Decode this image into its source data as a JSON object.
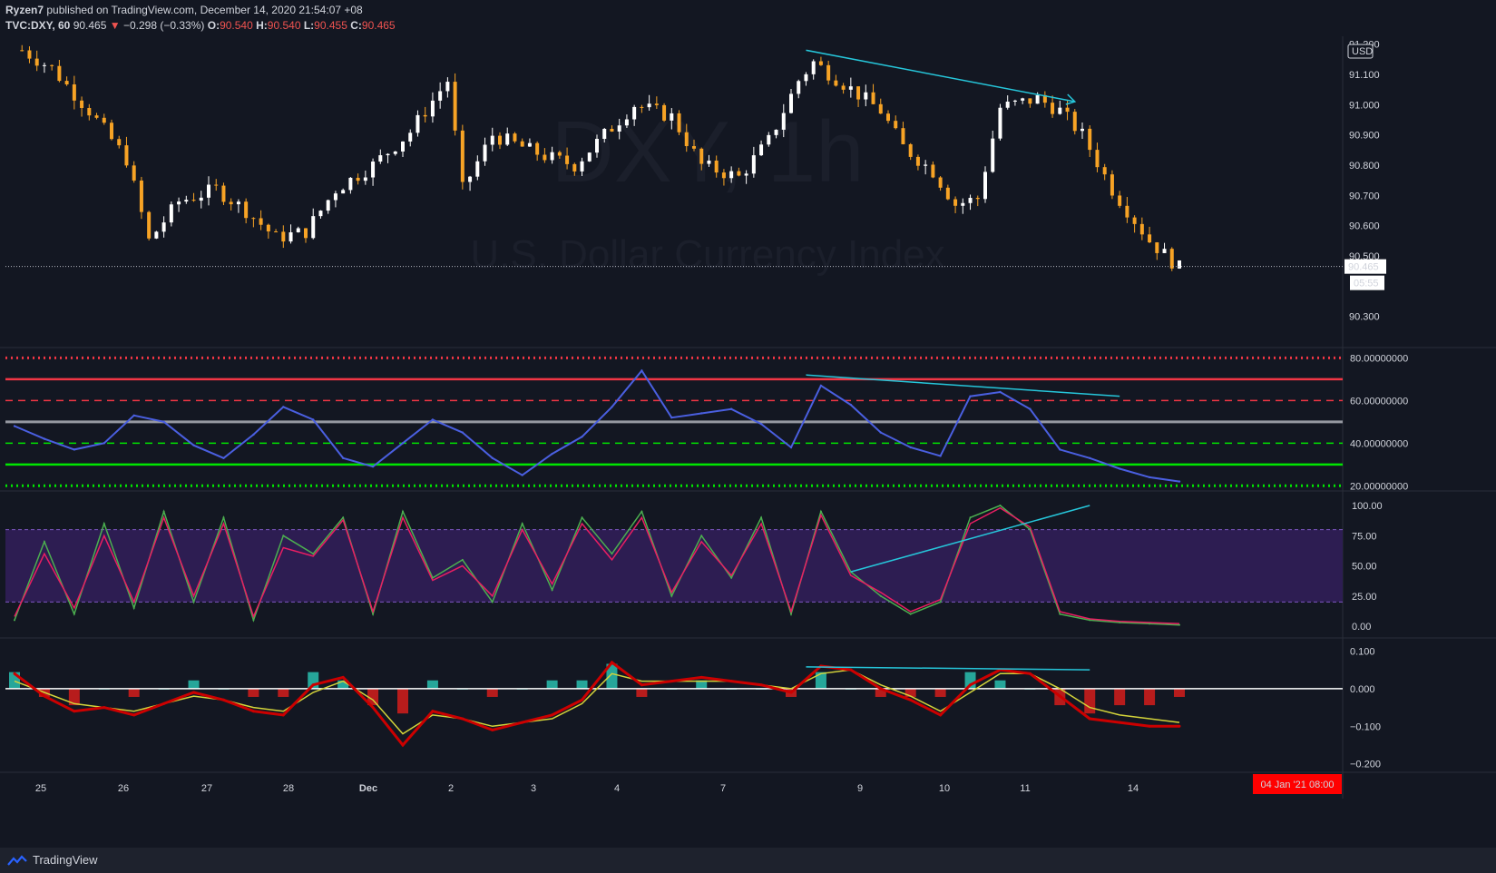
{
  "header": {
    "author": "Ryzen7",
    "published_text": "published on TradingView.com, December 14, 2020 21:54:07 +08",
    "symbol": "TVC:DXY, 60",
    "last": "90.465",
    "change_arrow": "▼",
    "change": "−0.298 (−0.33%)",
    "open_label": "O:",
    "open": "90.540",
    "high_label": "H:",
    "high": "90.540",
    "low_label": "L:",
    "low": "90.455",
    "close_label": "C:",
    "close": "90.465"
  },
  "watermark": {
    "symbol": "DXY, 1h",
    "name": "U.S. Dollar Currency Index"
  },
  "colors": {
    "background": "#131722",
    "up_candle": "#ffffff",
    "down_candle": "#f7a325",
    "trendline": "#26c6da",
    "rsi_line": "#4a5fe0",
    "stoch_k": "#4caf50",
    "stoch_d": "#e91e63",
    "macd_line": "#cc0000",
    "signal_line": "#d4d43a",
    "accent_red": "#ef5350"
  },
  "price_axis": {
    "currency": "USD",
    "ticks": [
      "91.200",
      "91.100",
      "91.000",
      "90.900",
      "90.800",
      "90.700",
      "90.600",
      "90.500",
      "90.300"
    ],
    "last_price": "90.465",
    "countdown": "05:55"
  },
  "rsi_axis": {
    "ticks": [
      "80.00000000",
      "60.00000000",
      "40.00000000",
      "20.00000000"
    ]
  },
  "stoch_axis": {
    "ticks": [
      "100.00",
      "75.00",
      "50.00",
      "25.00",
      "0.00"
    ]
  },
  "macd_axis": {
    "ticks": [
      "0.100",
      "0.000",
      "−0.100",
      "−0.200"
    ]
  },
  "time_axis": {
    "labels": [
      "25",
      "26",
      "27",
      "28",
      "Dec",
      "2",
      "3",
      "4",
      "7",
      "9",
      "10",
      "11",
      "14"
    ],
    "current_badge": "04 Jan '21  08:00"
  },
  "footer": {
    "brand": "TradingView"
  },
  "chart_data": [
    {
      "type": "candlestick",
      "title": "U.S. Dollar Currency Index",
      "series_points": [
        [
          1,
          91.18
        ],
        [
          5,
          91.12
        ],
        [
          10,
          90.98
        ],
        [
          15,
          90.82
        ],
        [
          18,
          90.55
        ],
        [
          22,
          90.68
        ],
        [
          27,
          90.72
        ],
        [
          31,
          90.65
        ],
        [
          35,
          90.56
        ],
        [
          39,
          90.58
        ],
        [
          43,
          90.72
        ],
        [
          48,
          90.8
        ],
        [
          53,
          90.91
        ],
        [
          55,
          90.98
        ],
        [
          58,
          91.08
        ],
        [
          60,
          90.72
        ],
        [
          64,
          90.9
        ],
        [
          68,
          90.86
        ],
        [
          71,
          90.83
        ],
        [
          75,
          90.8
        ],
        [
          79,
          90.9
        ],
        [
          83,
          91.0
        ],
        [
          88,
          90.96
        ],
        [
          92,
          90.8
        ],
        [
          97,
          90.76
        ],
        [
          101,
          90.88
        ],
        [
          105,
          91.08
        ],
        [
          107,
          91.14
        ],
        [
          111,
          91.07
        ],
        [
          116,
          90.98
        ],
        [
          119,
          90.86
        ],
        [
          123,
          90.78
        ],
        [
          126,
          90.67
        ],
        [
          129,
          90.69
        ],
        [
          132,
          90.99
        ],
        [
          137,
          91.02
        ],
        [
          140,
          90.98
        ],
        [
          143,
          90.9
        ],
        [
          147,
          90.72
        ],
        [
          152,
          90.55
        ],
        [
          156,
          90.46
        ]
      ],
      "ylim": [
        90.2,
        91.22
      ]
    },
    {
      "type": "line",
      "name": "RSI",
      "levels": [
        80,
        70,
        60,
        50,
        40,
        30,
        20
      ],
      "ylim": [
        18,
        84
      ],
      "x": [
        0,
        4,
        8,
        12,
        16,
        20,
        24,
        28,
        32,
        36,
        40,
        44,
        48,
        52,
        56,
        60,
        64,
        68,
        72,
        76,
        80,
        84,
        88,
        92,
        96,
        100,
        104,
        108,
        112,
        116,
        120,
        124,
        128,
        132,
        136,
        140,
        144,
        148,
        152,
        156
      ],
      "values": [
        48,
        42,
        37,
        40,
        53,
        50,
        39,
        33,
        44,
        57,
        51,
        33,
        29,
        40,
        51,
        45,
        33,
        25,
        35,
        43,
        57,
        74,
        52,
        54,
        56,
        49,
        38,
        67,
        58,
        45,
        38,
        34,
        62,
        64,
        56,
        37,
        33,
        28,
        24,
        22
      ]
    },
    {
      "type": "line",
      "name": "Stochastic RSI",
      "ylim": [
        0,
        100
      ],
      "band": [
        20,
        80
      ],
      "x": [
        0,
        4,
        8,
        12,
        16,
        20,
        24,
        28,
        32,
        36,
        40,
        44,
        48,
        52,
        56,
        60,
        64,
        68,
        72,
        76,
        80,
        84,
        88,
        92,
        96,
        100,
        104,
        108,
        112,
        116,
        120,
        124,
        128,
        132,
        136,
        140,
        144,
        148,
        152,
        156
      ],
      "k": [
        5,
        70,
        10,
        85,
        15,
        95,
        20,
        90,
        5,
        75,
        60,
        90,
        10,
        95,
        40,
        55,
        20,
        85,
        30,
        90,
        60,
        95,
        25,
        75,
        40,
        90,
        10,
        95,
        45,
        25,
        10,
        20,
        90,
        100,
        80,
        10,
        5,
        3,
        2,
        1
      ],
      "d": [
        8,
        60,
        15,
        75,
        20,
        90,
        25,
        85,
        8,
        65,
        58,
        88,
        12,
        90,
        38,
        50,
        25,
        80,
        35,
        85,
        55,
        90,
        28,
        70,
        42,
        85,
        12,
        92,
        42,
        28,
        12,
        22,
        85,
        98,
        82,
        12,
        6,
        4,
        3,
        2
      ]
    },
    {
      "type": "line",
      "name": "MACD",
      "ylim": [
        -0.22,
        0.13
      ],
      "x": [
        0,
        4,
        8,
        12,
        16,
        20,
        24,
        28,
        32,
        36,
        40,
        44,
        48,
        52,
        56,
        60,
        64,
        68,
        72,
        76,
        80,
        84,
        88,
        92,
        96,
        100,
        104,
        108,
        112,
        116,
        120,
        124,
        128,
        132,
        136,
        140,
        144,
        148,
        152,
        156
      ],
      "macd": [
        0.04,
        -0.02,
        -0.06,
        -0.05,
        -0.07,
        -0.04,
        -0.01,
        -0.03,
        -0.06,
        -0.07,
        0.01,
        0.03,
        -0.05,
        -0.15,
        -0.06,
        -0.08,
        -0.11,
        -0.09,
        -0.07,
        -0.03,
        0.07,
        0.01,
        0.02,
        0.03,
        0.02,
        0.01,
        -0.01,
        0.06,
        0.05,
        0.0,
        -0.03,
        -0.07,
        0.01,
        0.05,
        0.04,
        -0.02,
        -0.08,
        -0.09,
        -0.1,
        -0.1
      ],
      "signal": [
        0.02,
        -0.01,
        -0.04,
        -0.05,
        -0.06,
        -0.04,
        -0.02,
        -0.03,
        -0.05,
        -0.06,
        -0.01,
        0.02,
        -0.03,
        -0.12,
        -0.07,
        -0.08,
        -0.1,
        -0.09,
        -0.08,
        -0.04,
        0.04,
        0.02,
        0.02,
        0.02,
        0.02,
        0.01,
        0.0,
        0.04,
        0.05,
        0.01,
        -0.02,
        -0.06,
        -0.01,
        0.04,
        0.04,
        0.0,
        -0.05,
        -0.07,
        -0.08,
        -0.09
      ]
    }
  ]
}
